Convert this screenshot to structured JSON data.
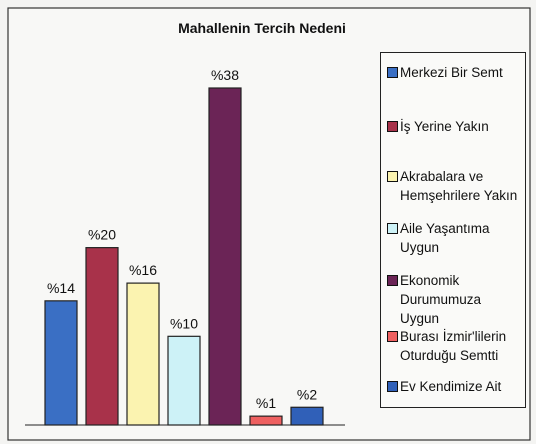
{
  "chart_data": {
    "type": "bar",
    "title": "Mahallenin Tercih Nedeni",
    "categories": [
      "Merkezi Bir Semt",
      "İş Yerine Yakın",
      "Akrabalara ve Hemşehrilere Yakın",
      "Aile Yaşantıma Uygun",
      "Ekonomik Durumumuza Uygun",
      "Burası İzmir'lilerin Oturduğu Semtti",
      "Ev Kendimize Ait"
    ],
    "values": [
      14,
      20,
      16,
      10,
      38,
      1,
      2
    ],
    "value_labels": [
      "%14",
      "%20",
      "%16",
      "%10",
      "%38",
      "%1",
      "%2"
    ],
    "colors": [
      "#3a6fc4",
      "#a8324a",
      "#fbf3b0",
      "#cdf2f7",
      "#6b2456",
      "#ee6060",
      "#3060b8"
    ]
  }
}
